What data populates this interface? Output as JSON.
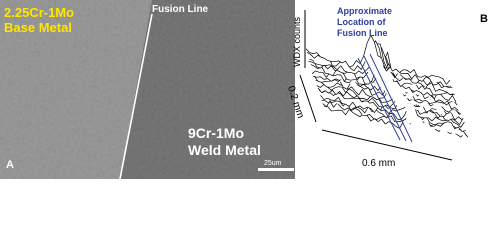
{
  "panel_a": {
    "label": "A",
    "base_metal": [
      "2.25Cr-1Mo",
      "Base Metal"
    ],
    "fusion_line": "Fusion Line",
    "weld_metal": [
      "9Cr-1Mo",
      "Weld Metal"
    ],
    "scale_bar": "25um"
  },
  "panel_b": {
    "label": "B",
    "y_axis_label": "WDX counts",
    "annotation": [
      "Approximate",
      "Location of",
      "Fusion Line"
    ],
    "depth_label": "0.2 mm",
    "width_label": "0.6 mm"
  }
}
